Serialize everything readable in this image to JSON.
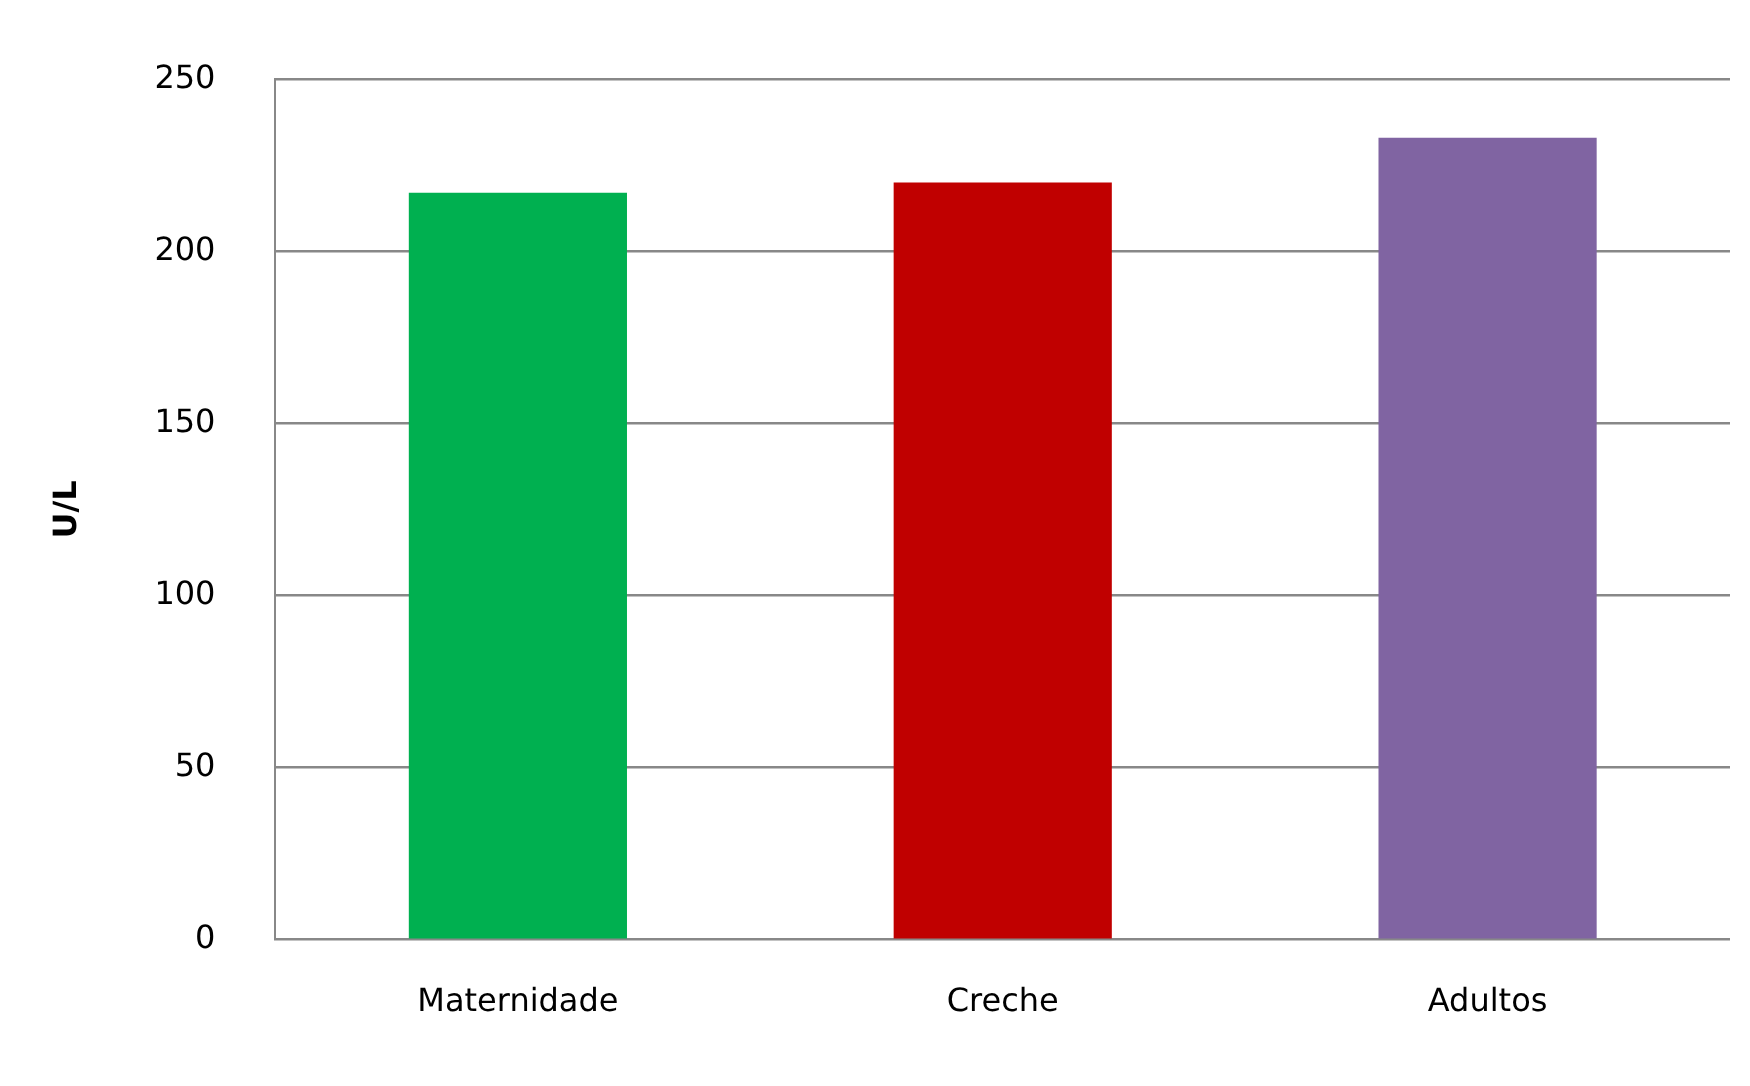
{
  "chart_data": {
    "type": "bar",
    "ylabel": "U/L",
    "categories": [
      "Maternidade",
      "Creche",
      "Adultos"
    ],
    "values": [
      217,
      220,
      233
    ],
    "colors": [
      "#00b050",
      "#c00000",
      "#8064a2"
    ],
    "ylim": [
      0,
      250
    ],
    "yticks": [
      0,
      50,
      100,
      150,
      200,
      250
    ],
    "grid": "y",
    "legend": false
  }
}
